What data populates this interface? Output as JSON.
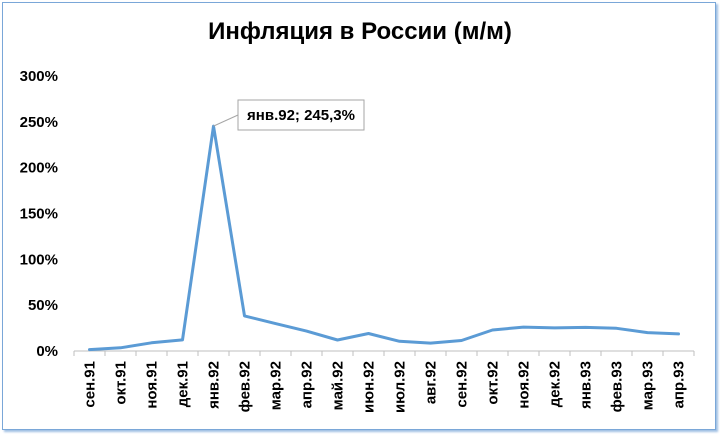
{
  "chart_data": {
    "type": "line",
    "title": "Инфляция в России (м/м)",
    "xlabel": "",
    "ylabel": "",
    "categories": [
      "сен.91",
      "окт.91",
      "ноя.91",
      "дек.91",
      "янв.92",
      "фев.92",
      "мар.92",
      "апр.92",
      "май.92",
      "июн.92",
      "июл.92",
      "авг.92",
      "сен.92",
      "окт.92",
      "ноя.92",
      "дек.92",
      "янв.93",
      "фев.93",
      "мар.93",
      "апр.93"
    ],
    "series": [
      {
        "values": [
          1.5,
          3.5,
          8.9,
          12.1,
          245.3,
          38.3,
          29.9,
          21.7,
          12.0,
          19.1,
          10.6,
          8.6,
          11.5,
          22.9,
          26.1,
          25.2,
          25.8,
          24.8,
          20.1,
          18.7
        ]
      }
    ],
    "ylim": [
      0,
      300
    ],
    "yticks": [
      "0%",
      "50%",
      "100%",
      "150%",
      "200%",
      "250%",
      "300%"
    ],
    "annotation": {
      "category": "янв.92",
      "text": "янв.92; 245,3%"
    },
    "grid": false,
    "legend": "none",
    "colors": {
      "line": "#5b9bd5",
      "axis": "#bfbfbf",
      "frame": "#7aa7d8"
    }
  }
}
